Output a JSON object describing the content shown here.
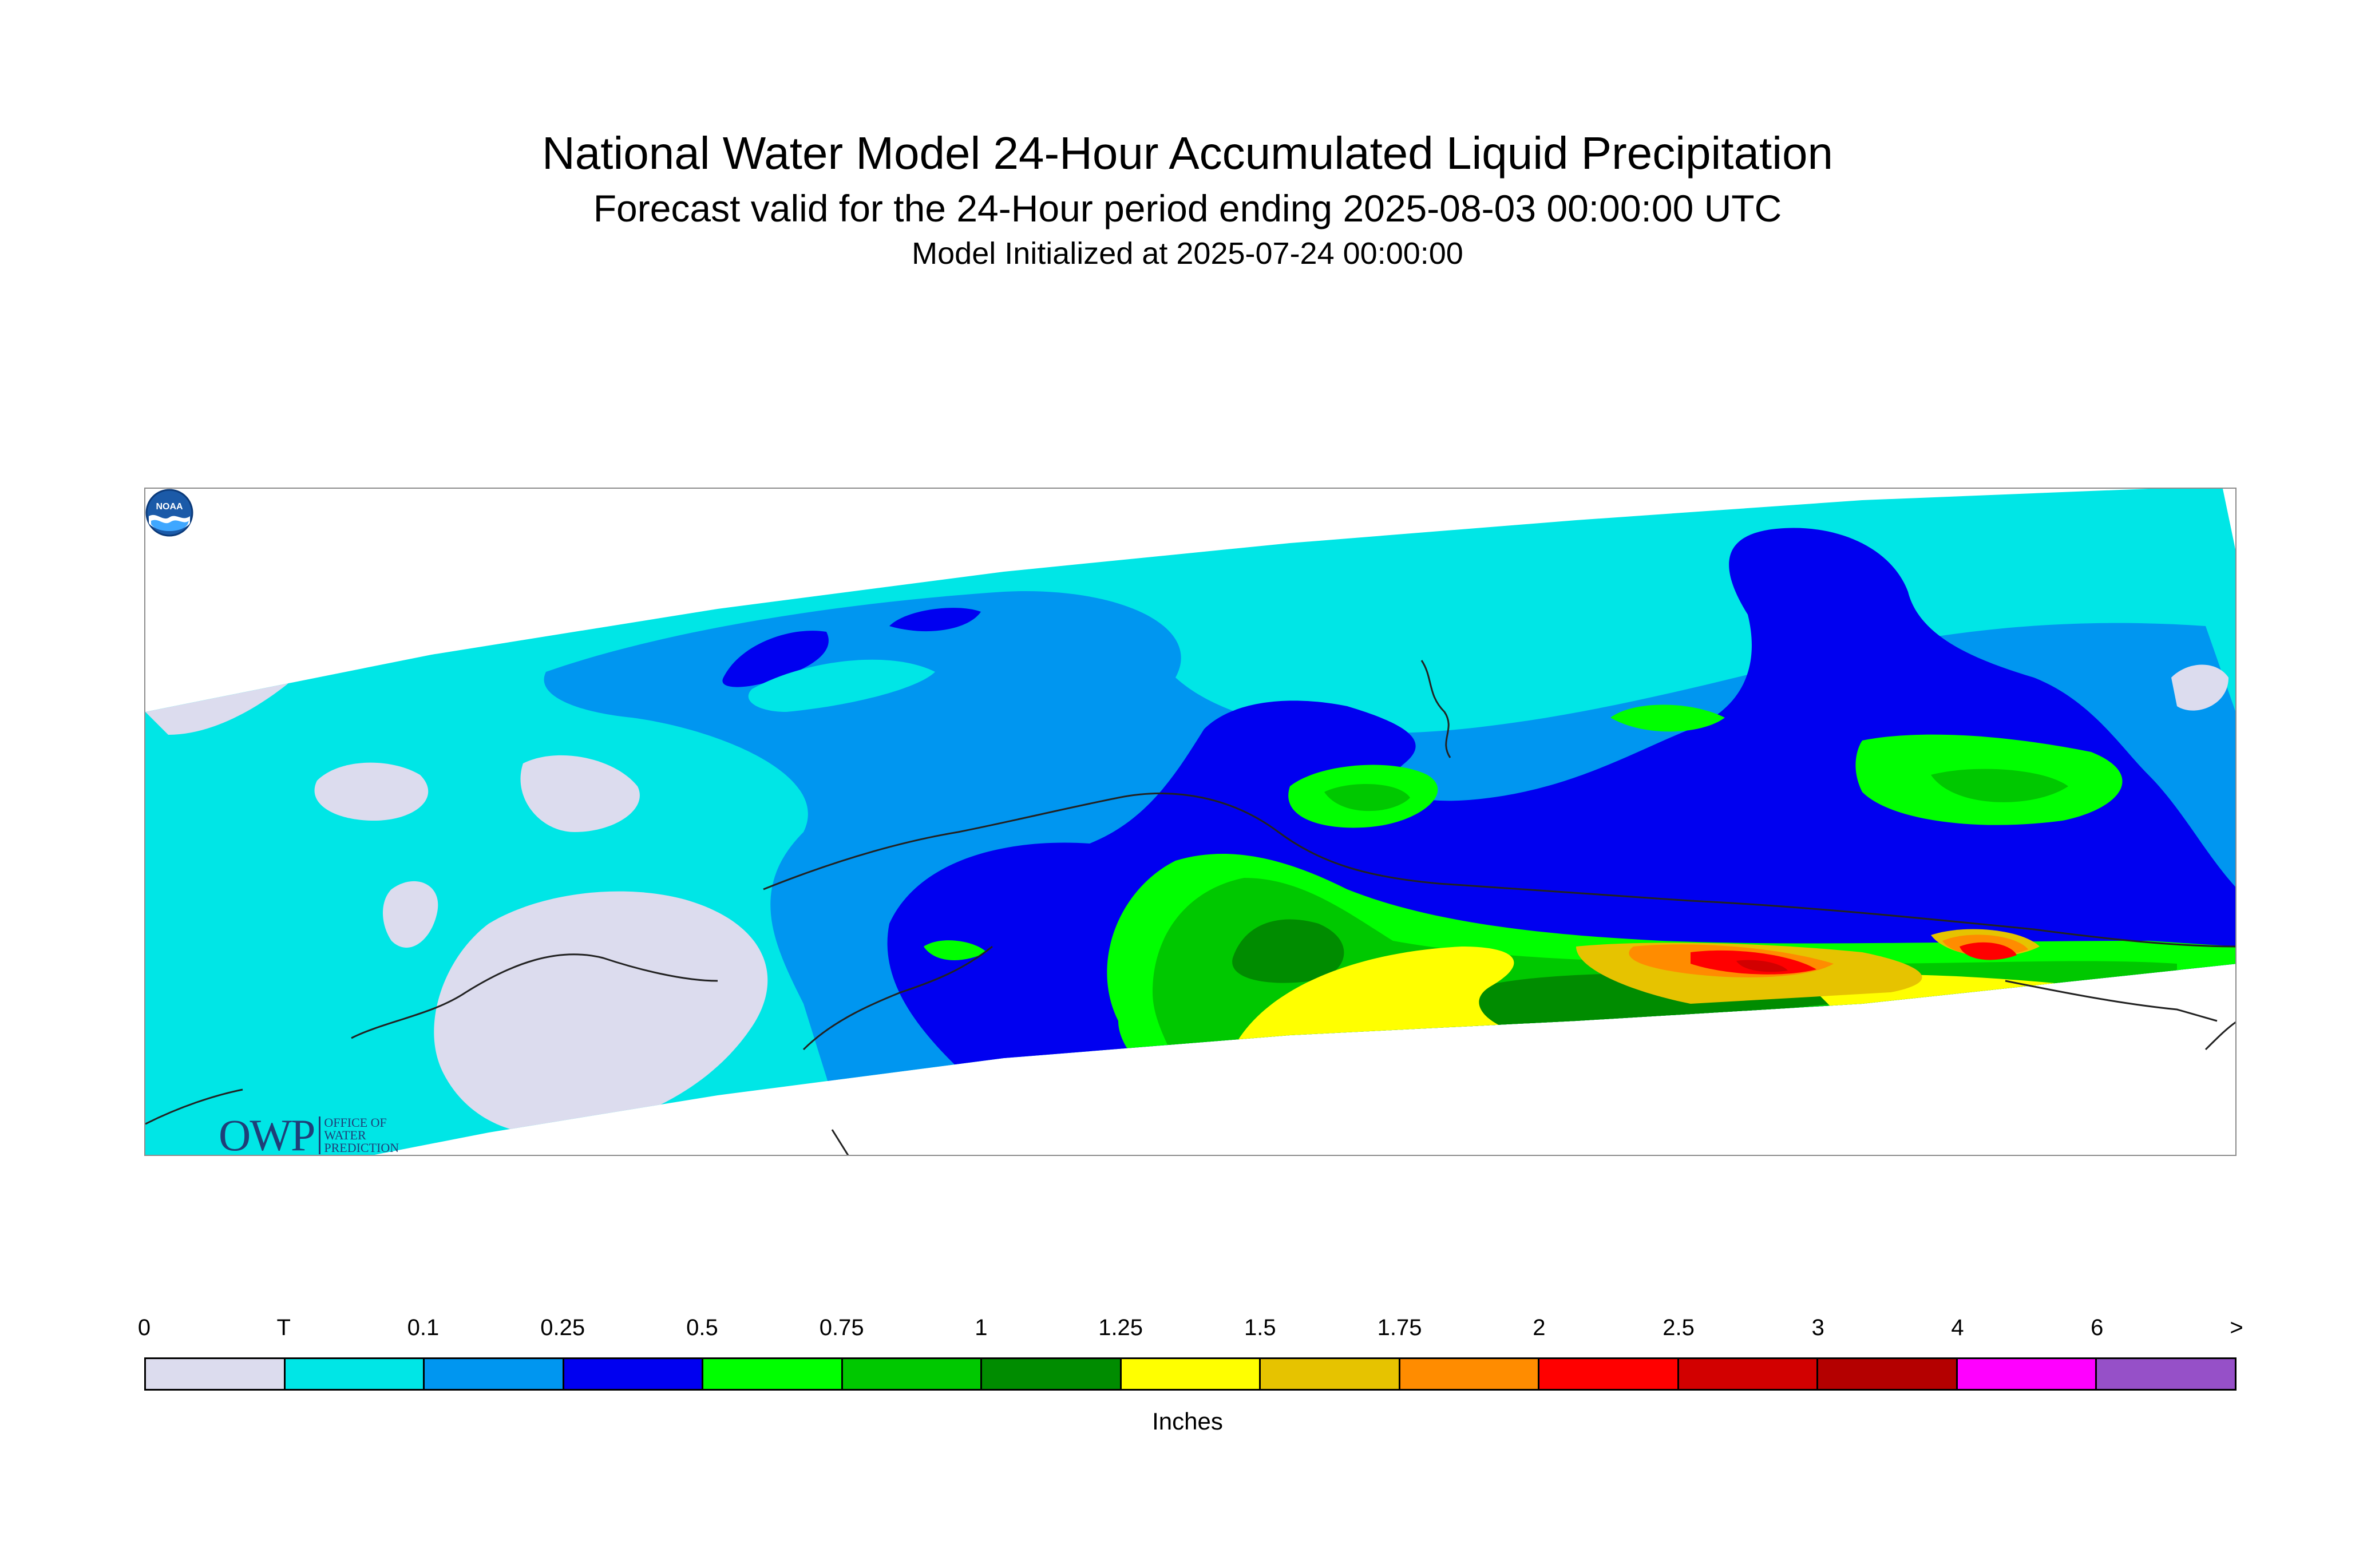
{
  "title": "National Water Model 24-Hour Accumulated Liquid Precipitation",
  "subtitle": "Forecast valid for the 24-Hour period ending 2025-08-03 00:00:00 UTC",
  "initialized": "Model Initialized at 2025-07-24 00:00:00",
  "logos": {
    "owp_letters": "OWP",
    "owp_text": "OFFICE OF WATER PREDICTION",
    "noaa_text": "NOAA"
  },
  "legend": {
    "units": "Inches",
    "ticks": [
      "0",
      "T",
      "0.1",
      "0.25",
      "0.5",
      "0.75",
      "1",
      "1.25",
      "1.5",
      "1.75",
      "2",
      "2.5",
      "3",
      "4",
      "6",
      ">"
    ],
    "colors": [
      "#dcdcee",
      "#00e6e6",
      "#0096f0",
      "#0000f0",
      "#00ff00",
      "#00c800",
      "#008c00",
      "#ffff00",
      "#e6c300",
      "#ff8c00",
      "#ff0000",
      "#d20000",
      "#b40000",
      "#ff00ff",
      "#9650c8"
    ]
  }
}
